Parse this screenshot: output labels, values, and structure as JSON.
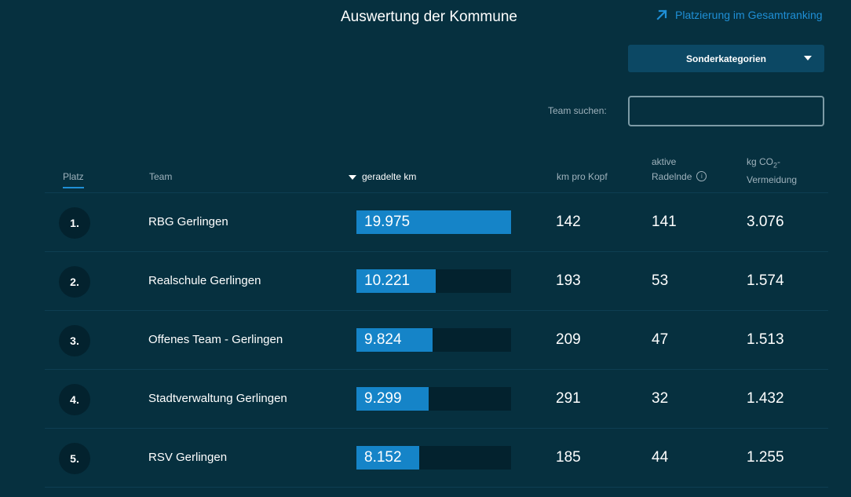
{
  "header": {
    "title": "Auswertung der Kommune",
    "ranking_link": "Platzierung im Gesamtranking",
    "ranking_icon": "arrow-up-right-icon"
  },
  "filter": {
    "dropdown_label": "Sonderkategorien",
    "search_label": "Team suchen:",
    "search_value": "",
    "search_placeholder": ""
  },
  "table": {
    "columns": {
      "platz": "Platz",
      "team": "Team",
      "km": "geradelte km",
      "km_kopf": "km pro Kopf",
      "aktiv_line1": "aktive",
      "aktiv_line2": "Radelnde",
      "co2_line1a": "kg CO",
      "co2_sub": "2",
      "co2_line1b": "-",
      "co2_line2": "Vermeidung"
    },
    "rows": [
      {
        "rank": "1.",
        "team": "RBG Gerlingen",
        "km": "19.975",
        "km_fraction": 1.0,
        "km_kopf": "142",
        "aktiv": "141",
        "co2": "3.076"
      },
      {
        "rank": "2.",
        "team": "Realschule Gerlingen",
        "km": "10.221",
        "km_fraction": 0.512,
        "km_kopf": "193",
        "aktiv": "53",
        "co2": "1.574"
      },
      {
        "rank": "3.",
        "team": "Offenes Team - Gerlingen",
        "km": "9.824",
        "km_fraction": 0.492,
        "km_kopf": "209",
        "aktiv": "47",
        "co2": "1.513"
      },
      {
        "rank": "4.",
        "team": "Stadtverwaltung Gerlingen",
        "km": "9.299",
        "km_fraction": 0.466,
        "km_kopf": "291",
        "aktiv": "32",
        "co2": "1.432"
      },
      {
        "rank": "5.",
        "team": "RSV Gerlingen",
        "km": "8.152",
        "km_fraction": 0.408,
        "km_kopf": "185",
        "aktiv": "44",
        "co2": "1.255"
      }
    ]
  },
  "colors": {
    "background": "#06303f",
    "accent": "#1f8fd6",
    "bar_fill": "#1584c8",
    "bar_track": "#03222e"
  }
}
